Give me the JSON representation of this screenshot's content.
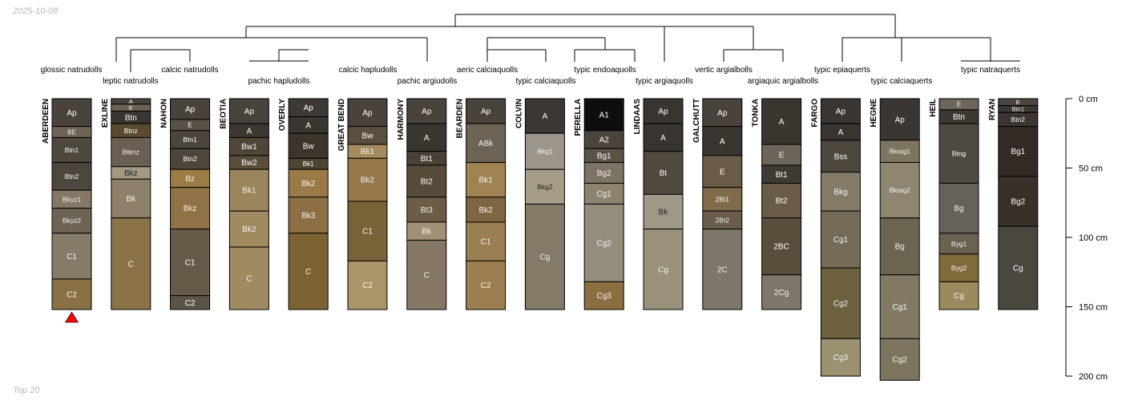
{
  "header": {
    "date": "2025-10-08"
  },
  "footer": {
    "label": "Top 20"
  },
  "colors": {
    "line": "#000000",
    "marker": "#ff0000"
  },
  "depth_axis": {
    "unit": "cm",
    "max": 200,
    "ticks": [
      {
        "value": 0,
        "label": "0 cm"
      },
      {
        "value": 50,
        "label": "50 cm"
      },
      {
        "value": 100,
        "label": "100 cm"
      },
      {
        "value": 150,
        "label": "150 cm"
      },
      {
        "value": 200,
        "label": "200 cm"
      }
    ]
  },
  "subgroup_labels": [
    "glossic natrudolls",
    "leptic natrudolls",
    "calcic natrudolls",
    "pachic hapludolls",
    "calcic hapludolls",
    "pachic argiudolls",
    "aeric calciaquolls",
    "typic calciaquolls",
    "typic endoaquolls",
    "typic argiaquolls",
    "vertic argialbolls",
    "argiaquic argialbolls",
    "typic epiaquerts",
    "typic calciaquerts",
    "typic natraquerts"
  ],
  "profiles": [
    {
      "name": "ABERDEEN",
      "marker": true,
      "horizons": [
        {
          "name": "Ap",
          "top": 0,
          "bottom": 20,
          "color": "#4a433c"
        },
        {
          "name": "BE",
          "top": 20,
          "bottom": 28,
          "color": "#6e6456"
        },
        {
          "name": "Btn1",
          "top": 28,
          "bottom": 46,
          "color": "#4e473e"
        },
        {
          "name": "Btn2",
          "top": 46,
          "bottom": 66,
          "color": "#4d463d"
        },
        {
          "name": "Bkyz1",
          "top": 66,
          "bottom": 79,
          "color": "#857866"
        },
        {
          "name": "Bkyz2",
          "top": 79,
          "bottom": 97,
          "color": "#6e6453"
        },
        {
          "name": "C1",
          "top": 97,
          "bottom": 130,
          "color": "#867a68"
        },
        {
          "name": "C2",
          "top": 130,
          "bottom": 152,
          "color": "#8a7045"
        }
      ]
    },
    {
      "name": "EXLINE",
      "marker": false,
      "horizons": [
        {
          "name": "A",
          "top": 0,
          "bottom": 4,
          "color": "#4a433c"
        },
        {
          "name": "E",
          "top": 4,
          "bottom": 9,
          "color": "#6d6355"
        },
        {
          "name": "Btn",
          "top": 9,
          "bottom": 18,
          "color": "#3b352f"
        },
        {
          "name": "Btnz",
          "top": 18,
          "bottom": 28,
          "color": "#5a4a32"
        },
        {
          "name": "Btknz",
          "top": 28,
          "bottom": 49,
          "color": "#6a5f51"
        },
        {
          "name": "Bkz",
          "top": 49,
          "bottom": 58,
          "color": "#a49a84"
        },
        {
          "name": "Bk",
          "top": 58,
          "bottom": 86,
          "color": "#8f806a"
        },
        {
          "name": "C",
          "top": 86,
          "bottom": 152,
          "color": "#8b7247"
        }
      ]
    },
    {
      "name": "NAHON",
      "marker": false,
      "horizons": [
        {
          "name": "Ap",
          "top": 0,
          "bottom": 15,
          "color": "#4a433c"
        },
        {
          "name": "E",
          "top": 15,
          "bottom": 23,
          "color": "#5a5248"
        },
        {
          "name": "Btn1",
          "top": 23,
          "bottom": 36,
          "color": "#4c453c"
        },
        {
          "name": "Btn2",
          "top": 36,
          "bottom": 51,
          "color": "#4e463b"
        },
        {
          "name": "Bz",
          "top": 51,
          "bottom": 64,
          "color": "#9c7c45"
        },
        {
          "name": "Bkz",
          "top": 64,
          "bottom": 94,
          "color": "#8f7346"
        },
        {
          "name": "C1",
          "top": 94,
          "bottom": 142,
          "color": "#665a48"
        },
        {
          "name": "C2",
          "top": 142,
          "bottom": 152,
          "color": "#5c5445"
        }
      ]
    },
    {
      "name": "BEOTIA",
      "marker": false,
      "horizons": [
        {
          "name": "Ap",
          "top": 0,
          "bottom": 18,
          "color": "#4a433c"
        },
        {
          "name": "A",
          "top": 18,
          "bottom": 28,
          "color": "#3d3731"
        },
        {
          "name": "Bw1",
          "top": 28,
          "bottom": 41,
          "color": "#4f4638"
        },
        {
          "name": "Bw2",
          "top": 41,
          "bottom": 51,
          "color": "#5a4e3b"
        },
        {
          "name": "Bk1",
          "top": 51,
          "bottom": 81,
          "color": "#9c845c"
        },
        {
          "name": "Bk2",
          "top": 81,
          "bottom": 107,
          "color": "#a28a60"
        },
        {
          "name": "C",
          "top": 107,
          "bottom": 152,
          "color": "#a18a62"
        }
      ]
    },
    {
      "name": "OVERLY",
      "marker": false,
      "horizons": [
        {
          "name": "Ap",
          "top": 0,
          "bottom": 13,
          "color": "#3e3933"
        },
        {
          "name": "A",
          "top": 13,
          "bottom": 25,
          "color": "#3b352f"
        },
        {
          "name": "Bw",
          "top": 25,
          "bottom": 43,
          "color": "#3d342a"
        },
        {
          "name": "Bk1",
          "top": 43,
          "bottom": 51,
          "color": "#4e4434"
        },
        {
          "name": "Bk2",
          "top": 51,
          "bottom": 71,
          "color": "#9a7b45"
        },
        {
          "name": "Bk3",
          "top": 71,
          "bottom": 97,
          "color": "#8c7044"
        },
        {
          "name": "C",
          "top": 97,
          "bottom": 152,
          "color": "#7d6232"
        }
      ]
    },
    {
      "name": "GREAT BEND",
      "marker": false,
      "horizons": [
        {
          "name": "Ap",
          "top": 0,
          "bottom": 20,
          "color": "#4a433c"
        },
        {
          "name": "Bw",
          "top": 20,
          "bottom": 33,
          "color": "#5b5040"
        },
        {
          "name": "Bk1",
          "top": 33,
          "bottom": 43,
          "color": "#a48a5c"
        },
        {
          "name": "Bk2",
          "top": 43,
          "bottom": 74,
          "color": "#96794a"
        },
        {
          "name": "C1",
          "top": 74,
          "bottom": 117,
          "color": "#7a6238"
        },
        {
          "name": "C2",
          "top": 117,
          "bottom": 152,
          "color": "#ab9467"
        }
      ]
    },
    {
      "name": "HARMONY",
      "marker": false,
      "horizons": [
        {
          "name": "Ap",
          "top": 0,
          "bottom": 18,
          "color": "#4a433c"
        },
        {
          "name": "A",
          "top": 18,
          "bottom": 38,
          "color": "#3b352f"
        },
        {
          "name": "Bt1",
          "top": 38,
          "bottom": 48,
          "color": "#4a4136"
        },
        {
          "name": "Bt2",
          "top": 48,
          "bottom": 71,
          "color": "#574a38"
        },
        {
          "name": "Bt3",
          "top": 71,
          "bottom": 89,
          "color": "#6d5d46"
        },
        {
          "name": "Bk",
          "top": 89,
          "bottom": 102,
          "color": "#a09176"
        },
        {
          "name": "C",
          "top": 102,
          "bottom": 152,
          "color": "#857764"
        }
      ]
    },
    {
      "name": "BEARDEN",
      "marker": false,
      "horizons": [
        {
          "name": "Ap",
          "top": 0,
          "bottom": 18,
          "color": "#4a433c"
        },
        {
          "name": "ABk",
          "top": 18,
          "bottom": 46,
          "color": "#6d6355"
        },
        {
          "name": "Bk1",
          "top": 46,
          "bottom": 71,
          "color": "#a08353"
        },
        {
          "name": "Bk2",
          "top": 71,
          "bottom": 89,
          "color": "#7f6640"
        },
        {
          "name": "C1",
          "top": 89,
          "bottom": 117,
          "color": "#9a7f52"
        },
        {
          "name": "C2",
          "top": 117,
          "bottom": 152,
          "color": "#9c7f50"
        }
      ]
    },
    {
      "name": "COLVIN",
      "marker": false,
      "horizons": [
        {
          "name": "A",
          "top": 0,
          "bottom": 25,
          "color": "#3c3732"
        },
        {
          "name": "Bkg1",
          "top": 25,
          "bottom": 51,
          "color": "#9b958a"
        },
        {
          "name": "Bkg2",
          "top": 51,
          "bottom": 76,
          "color": "#a79c85"
        },
        {
          "name": "Cg",
          "top": 76,
          "bottom": 152,
          "color": "#837a67"
        }
      ]
    },
    {
      "name": "PERELLA",
      "marker": false,
      "horizons": [
        {
          "name": "A1",
          "top": 0,
          "bottom": 23,
          "color": "#0f0e0d"
        },
        {
          "name": "A2",
          "top": 23,
          "bottom": 36,
          "color": "#4c453c"
        },
        {
          "name": "Bg1",
          "top": 36,
          "bottom": 46,
          "color": "#595247"
        },
        {
          "name": "Bg2",
          "top": 46,
          "bottom": 61,
          "color": "#7c7463"
        },
        {
          "name": "Cg1",
          "top": 61,
          "bottom": 76,
          "color": "#8d846f"
        },
        {
          "name": "Cg2",
          "top": 76,
          "bottom": 132,
          "color": "#968e7d"
        },
        {
          "name": "Cg3",
          "top": 132,
          "bottom": 152,
          "color": "#8c6f40"
        }
      ]
    },
    {
      "name": "LINDAAS",
      "marker": false,
      "horizons": [
        {
          "name": "Ap",
          "top": 0,
          "bottom": 18,
          "color": "#3a3530"
        },
        {
          "name": "A",
          "top": 18,
          "bottom": 38,
          "color": "#39342f"
        },
        {
          "name": "Bt",
          "top": 38,
          "bottom": 69,
          "color": "#4f4940"
        },
        {
          "name": "Bk",
          "top": 69,
          "bottom": 94,
          "color": "#a09887"
        },
        {
          "name": "Cg",
          "top": 94,
          "bottom": 152,
          "color": "#9a917a"
        }
      ]
    },
    {
      "name": "GALCHUTT",
      "marker": false,
      "horizons": [
        {
          "name": "Ap",
          "top": 0,
          "bottom": 20,
          "color": "#4a433c"
        },
        {
          "name": "A",
          "top": 20,
          "bottom": 41,
          "color": "#3b352f"
        },
        {
          "name": "E",
          "top": 41,
          "bottom": 64,
          "color": "#6b5c48"
        },
        {
          "name": "2Bt1",
          "top": 64,
          "bottom": 81,
          "color": "#816b4b"
        },
        {
          "name": "2Bt2",
          "top": 81,
          "bottom": 94,
          "color": "#6b5d4b"
        },
        {
          "name": "2C",
          "top": 94,
          "bottom": 152,
          "color": "#7e776a"
        }
      ]
    },
    {
      "name": "TONKA",
      "marker": false,
      "horizons": [
        {
          "name": "A",
          "top": 0,
          "bottom": 33,
          "color": "#3b352f"
        },
        {
          "name": "E",
          "top": 33,
          "bottom": 48,
          "color": "#6d655a"
        },
        {
          "name": "Bt1",
          "top": 48,
          "bottom": 61,
          "color": "#3f3a34"
        },
        {
          "name": "Bt2",
          "top": 61,
          "bottom": 86,
          "color": "#6b5c4a"
        },
        {
          "name": "2BC",
          "top": 86,
          "bottom": 127,
          "color": "#5a4d3c"
        },
        {
          "name": "2Cg",
          "top": 127,
          "bottom": 152,
          "color": "#7e776a"
        }
      ]
    },
    {
      "name": "FARGO",
      "marker": false,
      "horizons": [
        {
          "name": "Ap",
          "top": 0,
          "bottom": 18,
          "color": "#3b3632"
        },
        {
          "name": "A",
          "top": 18,
          "bottom": 30,
          "color": "#39342f"
        },
        {
          "name": "Bss",
          "top": 30,
          "bottom": 53,
          "color": "#4d473e"
        },
        {
          "name": "Bkg",
          "top": 53,
          "bottom": 81,
          "color": "#847b67"
        },
        {
          "name": "Cg1",
          "top": 81,
          "bottom": 122,
          "color": "#746b56"
        },
        {
          "name": "Cg2",
          "top": 122,
          "bottom": 173,
          "color": "#6c603f"
        },
        {
          "name": "Cg3",
          "top": 173,
          "bottom": 200,
          "color": "#9b906f"
        }
      ]
    },
    {
      "name": "HEGNE",
      "marker": false,
      "horizons": [
        {
          "name": "Ap",
          "top": 0,
          "bottom": 30,
          "color": "#3b3632"
        },
        {
          "name": "Bkssg1",
          "top": 30,
          "bottom": 46,
          "color": "#7e745f"
        },
        {
          "name": "Bkssg2",
          "top": 46,
          "bottom": 86,
          "color": "#8f8672"
        },
        {
          "name": "Bg",
          "top": 86,
          "bottom": 127,
          "color": "#6b6450"
        },
        {
          "name": "Cg1",
          "top": 127,
          "bottom": 173,
          "color": "#837a66"
        },
        {
          "name": "Cg2",
          "top": 173,
          "bottom": 203,
          "color": "#7e7561"
        }
      ]
    },
    {
      "name": "HEIL",
      "marker": false,
      "horizons": [
        {
          "name": "E",
          "top": 0,
          "bottom": 8,
          "color": "#6e6659"
        },
        {
          "name": "Btn",
          "top": 8,
          "bottom": 18,
          "color": "#3e3832"
        },
        {
          "name": "Btng",
          "top": 18,
          "bottom": 61,
          "color": "#4e4941"
        },
        {
          "name": "Bg",
          "top": 61,
          "bottom": 97,
          "color": "#66615a"
        },
        {
          "name": "Byg1",
          "top": 97,
          "bottom": 112,
          "color": "#6a6250"
        },
        {
          "name": "Byg2",
          "top": 112,
          "bottom": 132,
          "color": "#806a3a"
        },
        {
          "name": "Cg",
          "top": 132,
          "bottom": 152,
          "color": "#9c8a5c"
        }
      ]
    },
    {
      "name": "RYAN",
      "marker": false,
      "horizons": [
        {
          "name": "E",
          "top": 0,
          "bottom": 5,
          "color": "#4c463f"
        },
        {
          "name": "Btn1",
          "top": 5,
          "bottom": 10,
          "color": "#3c3631"
        },
        {
          "name": "Btn2",
          "top": 10,
          "bottom": 20,
          "color": "#3e3530"
        },
        {
          "name": "Bg1",
          "top": 20,
          "bottom": 56,
          "color": "#332a25"
        },
        {
          "name": "Bg2",
          "top": 56,
          "bottom": 92,
          "color": "#3a302a"
        },
        {
          "name": "Cg",
          "top": 92,
          "bottom": 152,
          "color": "#4a473f"
        }
      ]
    }
  ]
}
